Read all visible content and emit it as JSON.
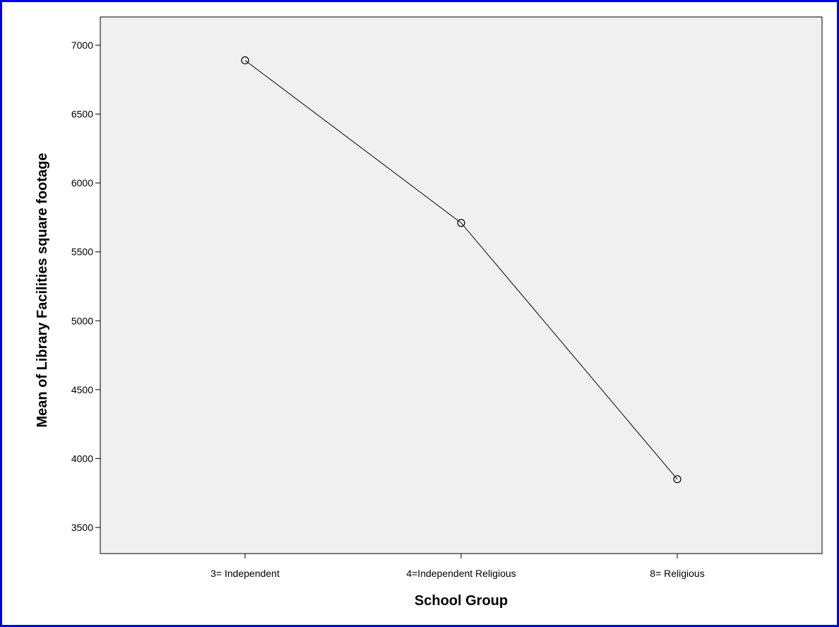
{
  "chart_data": {
    "type": "line",
    "categories": [
      "3= Independent",
      "4=Independent Religious",
      "8= Religious"
    ],
    "series": [
      {
        "values": [
          6890,
          5710,
          3850
        ]
      }
    ],
    "xlabel": "School Group",
    "ylabel": "Mean of Library Facilities square footage",
    "yticks": [
      3500,
      4000,
      4500,
      5000,
      5500,
      6000,
      6500,
      7000
    ],
    "ylim": [
      3300,
      7200
    ],
    "grid": false,
    "marker": "open-circle",
    "colors": {
      "border": "#0000e6",
      "plot_background": "#f0f0f0",
      "line": "#000000"
    }
  }
}
